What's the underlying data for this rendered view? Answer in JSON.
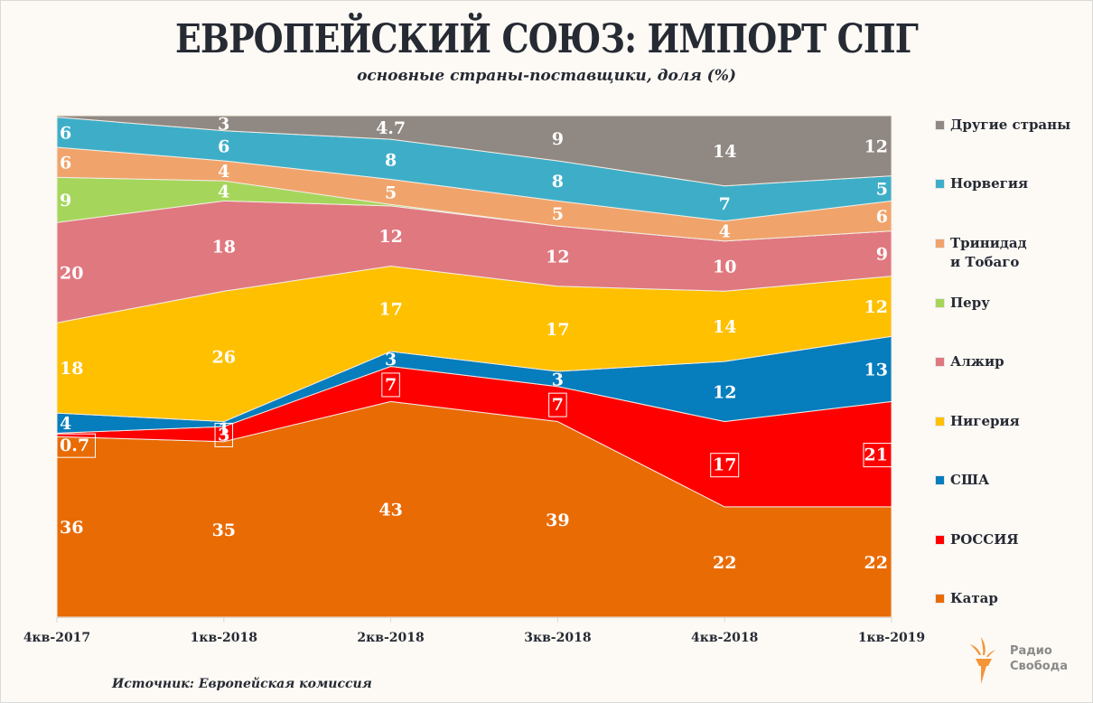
{
  "header": {
    "title": "ЕВРОПЕЙСКИЙ СОЮЗ: ИМПОРТ СПГ",
    "subtitle": "основные страны-поставщики, доля (%)"
  },
  "footer": {
    "source": "Источник: Европейская комиссия",
    "logo_line1": "Радио",
    "logo_line2": "Свобода"
  },
  "chart_data": {
    "type": "area",
    "stacked": true,
    "title": "ЕВРОПЕЙСКИЙ СОЮЗ: ИМПОРТ СПГ",
    "subtitle": "основные страны-поставщики, доля (%)",
    "xlabel": "",
    "ylabel": "",
    "ylim": [
      0,
      100
    ],
    "grid": false,
    "legend_position": "right",
    "categories": [
      "4кв-2017",
      "1кв-2018",
      "2кв-2018",
      "3кв-2018",
      "4кв-2018",
      "1кв-2019"
    ],
    "series": [
      {
        "name": "Катар",
        "color": "#e96b04",
        "values": [
          36,
          35,
          43,
          39,
          22,
          22
        ],
        "labels": [
          "36",
          "35",
          "43",
          "39",
          "22",
          "22"
        ],
        "boxed": false
      },
      {
        "name": "РОССИЯ",
        "color": "#ff0000",
        "values": [
          0.7,
          3,
          7,
          7,
          17,
          21
        ],
        "labels": [
          "0.7",
          "3",
          "7",
          "7",
          "17",
          "21"
        ],
        "boxed": true
      },
      {
        "name": "США",
        "color": "#067dbd",
        "values": [
          4,
          1,
          3,
          3,
          12,
          13
        ],
        "labels": [
          "4",
          "1",
          "3",
          "3",
          "12",
          "13"
        ],
        "boxed": false
      },
      {
        "name": "Нигерия",
        "color": "#ffc000",
        "values": [
          18,
          26,
          17,
          17,
          14,
          12
        ],
        "labels": [
          "18",
          "26",
          "17",
          "17",
          "14",
          "12"
        ],
        "boxed": false
      },
      {
        "name": "Алжир",
        "color": "#e07880",
        "values": [
          20,
          18,
          12,
          12,
          10,
          9
        ],
        "labels": [
          "20",
          "18",
          "12",
          "12",
          "10",
          "9"
        ],
        "boxed": false
      },
      {
        "name": "Перу",
        "color": "#a5d65b",
        "values": [
          9,
          4,
          0.3,
          0,
          0,
          0
        ],
        "labels": [
          "9",
          "4",
          "",
          "",
          "",
          ""
        ],
        "boxed": false
      },
      {
        "name": "Тринидад и Тобаго",
        "color": "#f0a46b",
        "values": [
          6,
          4,
          5,
          5,
          4,
          6
        ],
        "labels": [
          "6",
          "4",
          "5",
          "5",
          "4",
          "6"
        ],
        "boxed": false
      },
      {
        "name": "Норвегия",
        "color": "#3eaec8",
        "values": [
          6,
          6,
          8,
          8,
          7,
          5
        ],
        "labels": [
          "6",
          "6",
          "8",
          "8",
          "7",
          "5"
        ],
        "boxed": false
      },
      {
        "name": "Другие страны",
        "color": "#908882",
        "values": [
          0.3,
          3,
          4.7,
          9,
          14,
          12
        ],
        "labels": [
          "",
          "3",
          "4.7",
          "9",
          "14",
          "12"
        ],
        "boxed": false
      }
    ]
  },
  "legend": [
    {
      "label": "Другие страны",
      "color": "#908882"
    },
    {
      "label": "Норвегия",
      "color": "#3eaec8"
    },
    {
      "label": "Тринидад и Тобаго",
      "color": "#f0a46b"
    },
    {
      "label": "Перу",
      "color": "#a5d65b"
    },
    {
      "label": "Алжир",
      "color": "#e07880"
    },
    {
      "label": "Нигерия",
      "color": "#ffc000"
    },
    {
      "label": "США",
      "color": "#067dbd"
    },
    {
      "label": "РОССИЯ",
      "color": "#ff0000"
    },
    {
      "label": "Катар",
      "color": "#e96b04"
    }
  ]
}
